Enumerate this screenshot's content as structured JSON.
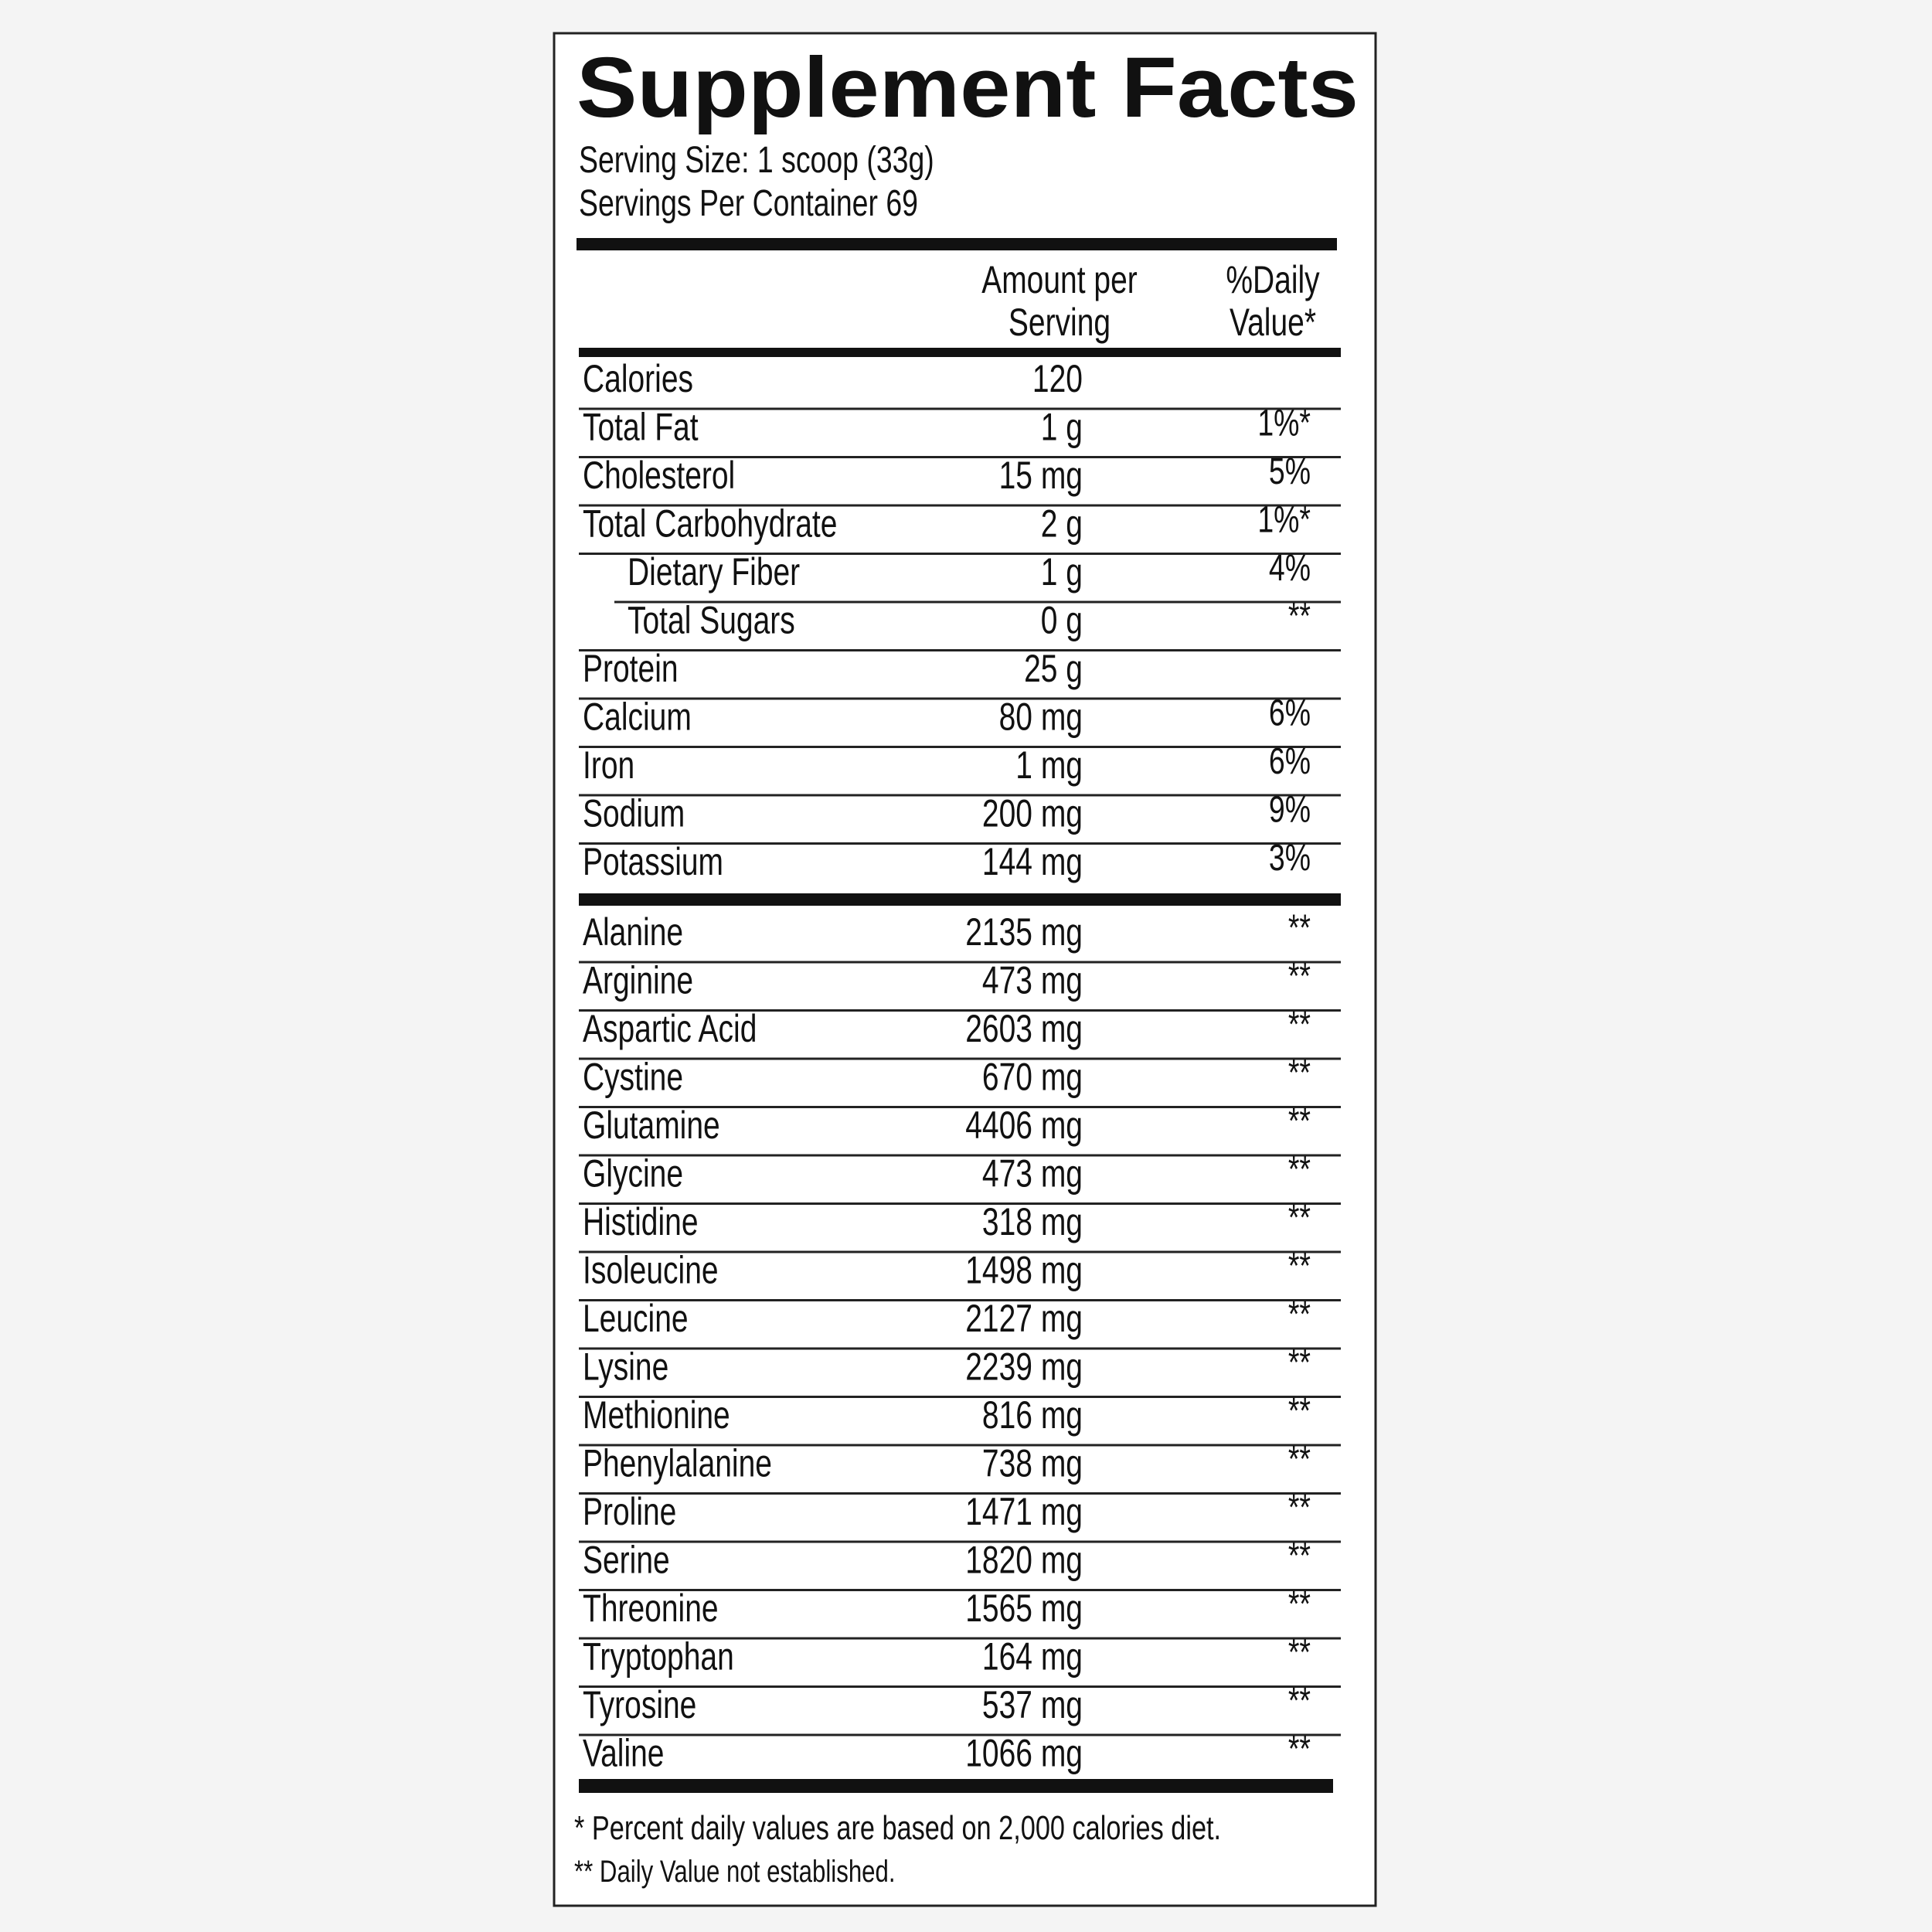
{
  "label": {
    "title": "Supplement Facts",
    "serving_size": "Serving Size: 1 scoop (33g)",
    "servings_per_container": "Servings Per Container 69",
    "header": {
      "amount": [
        "Amount per",
        "Serving"
      ],
      "daily_value": [
        "%Daily",
        "Value*"
      ]
    },
    "nutrients": [
      {
        "name": "Calories",
        "amount": "120"
      },
      {
        "name": "Total Fat",
        "amount": "1 g",
        "dv": "1%*"
      },
      {
        "name": "Cholesterol",
        "amount": "15 mg",
        "dv": "5%"
      },
      {
        "name": "Total Carbohydrate",
        "amount": "2 g",
        "dv": "1%*",
        "sub": [
          {
            "name": "Dietary Fiber",
            "amount": "1 g",
            "dv": "4%"
          },
          {
            "name": "Total Sugars",
            "amount": "0 g",
            "dv": "**"
          }
        ]
      },
      {
        "name": "Protein",
        "amount": "25 g"
      },
      {
        "name": "Calcium",
        "amount": "80 mg",
        "dv": "6%"
      },
      {
        "name": "Iron",
        "amount": "1 mg",
        "dv": "6%"
      },
      {
        "name": "Sodium",
        "amount": "200 mg",
        "dv": "9%"
      },
      {
        "name": "Potassium",
        "amount": "144 mg",
        "dv": "3%"
      }
    ],
    "amino_acids": [
      {
        "name": "Alanine",
        "amount": "2135 mg",
        "dv": "**"
      },
      {
        "name": "Arginine",
        "amount": "473 mg",
        "dv": "**"
      },
      {
        "name": "Aspartic Acid",
        "amount": "2603 mg",
        "dv": "**"
      },
      {
        "name": "Cystine",
        "amount": "670 mg",
        "dv": "**"
      },
      {
        "name": "Glutamine",
        "amount": "4406 mg",
        "dv": "**"
      },
      {
        "name": "Glycine",
        "amount": "473 mg",
        "dv": "**"
      },
      {
        "name": "Histidine",
        "amount": "318 mg",
        "dv": "**"
      },
      {
        "name": "Isoleucine",
        "amount": "1498 mg",
        "dv": "**"
      },
      {
        "name": "Leucine",
        "amount": "2127 mg",
        "dv": "**"
      },
      {
        "name": "Lysine",
        "amount": "2239 mg",
        "dv": "**"
      },
      {
        "name": "Methionine",
        "amount": "816 mg",
        "dv": "**"
      },
      {
        "name": "Phenylalanine",
        "amount": "738 mg",
        "dv": "**"
      },
      {
        "name": "Proline",
        "amount": "1471 mg",
        "dv": "**"
      },
      {
        "name": "Serine",
        "amount": "1820 mg",
        "dv": "**"
      },
      {
        "name": "Threonine",
        "amount": "1565 mg",
        "dv": "**"
      },
      {
        "name": "Tryptophan",
        "amount": "164 mg",
        "dv": "**"
      },
      {
        "name": "Tyrosine",
        "amount": "537 mg",
        "dv": "**"
      },
      {
        "name": "Valine",
        "amount": "1066 mg",
        "dv": "**"
      }
    ],
    "footnotes": [
      "* Percent daily values are based on 2,000 calories diet.",
      "** Daily Value not established."
    ]
  }
}
